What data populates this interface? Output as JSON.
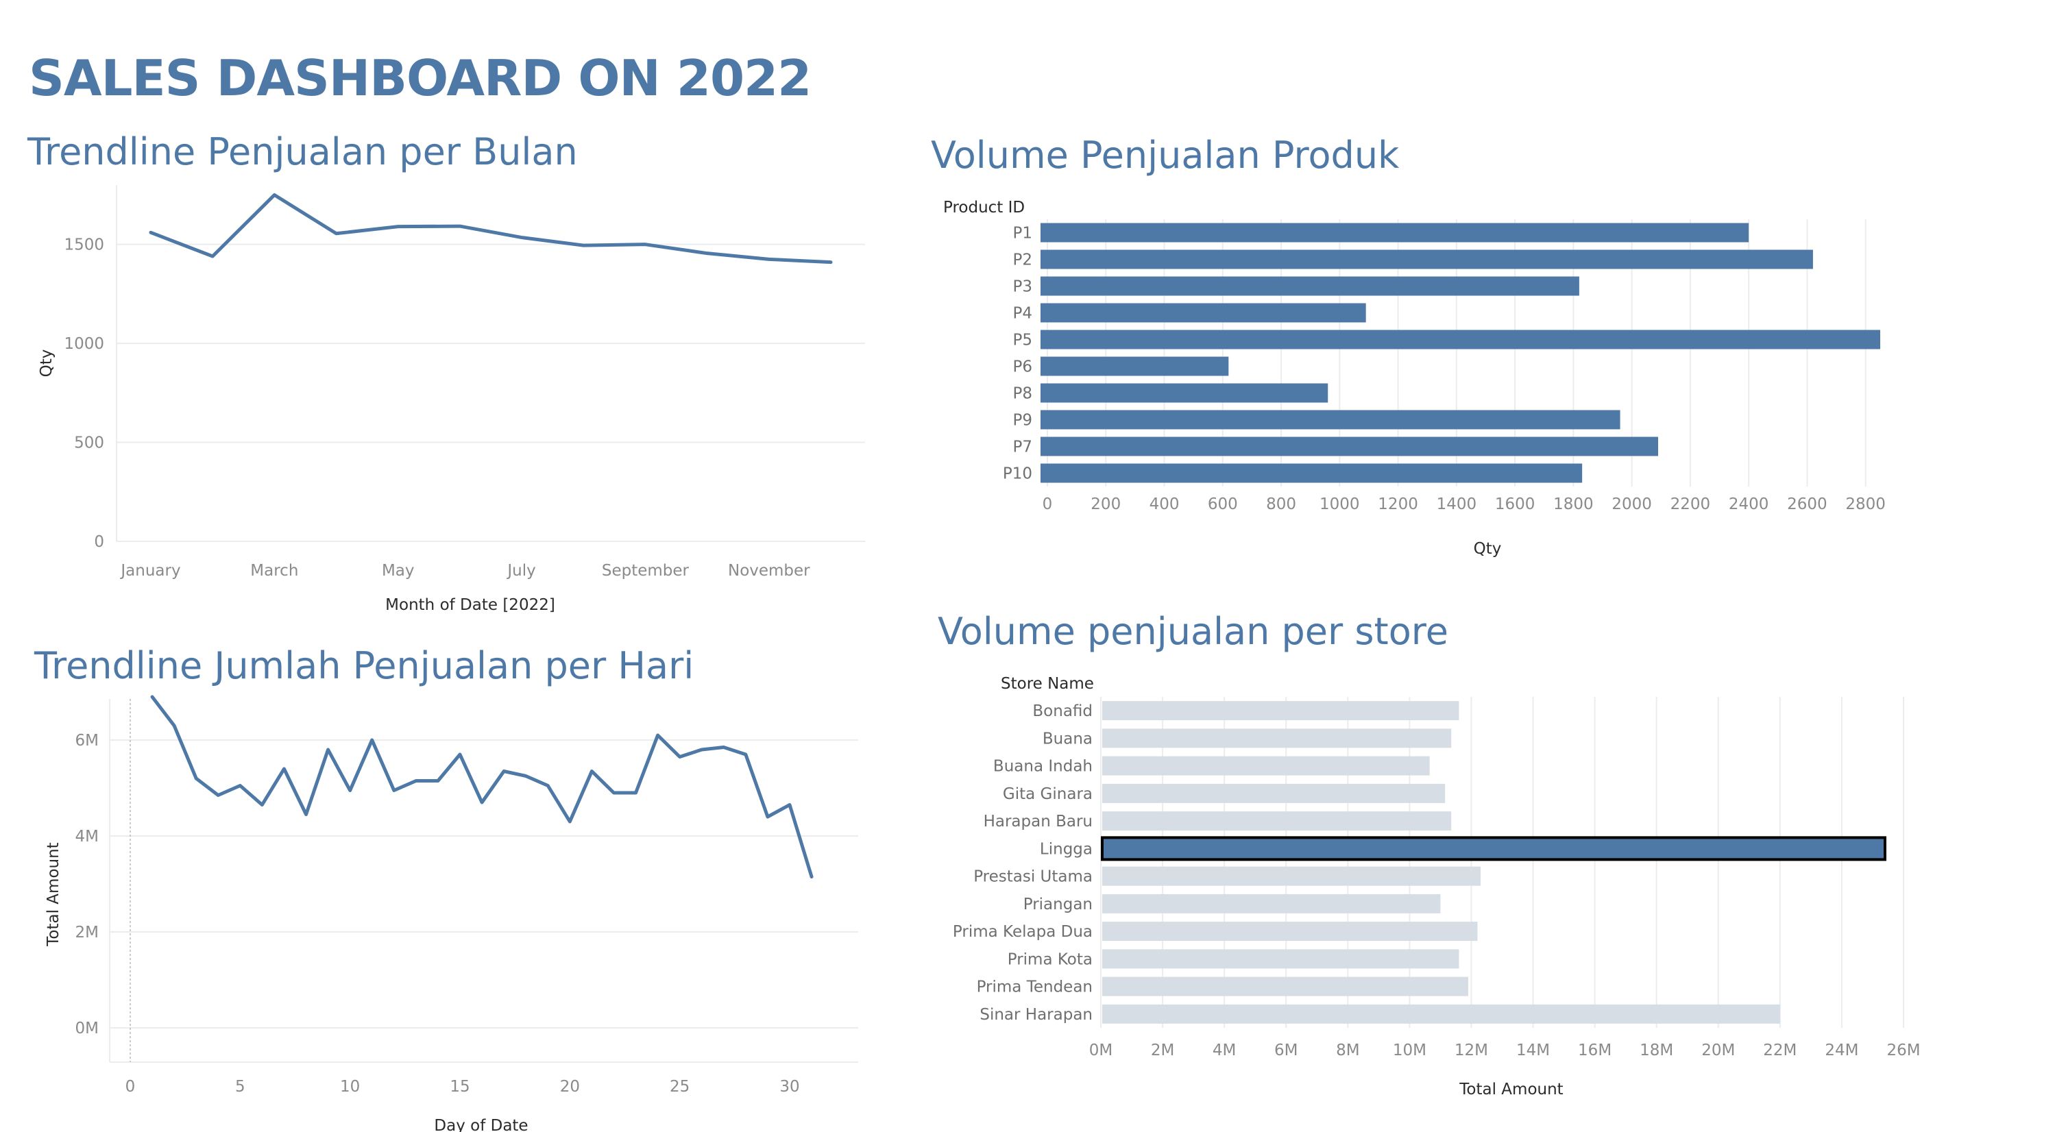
{
  "dashboard": {
    "title": "SALES DASHBOARD ON 2022"
  },
  "chart_data": [
    {
      "id": "monthly",
      "type": "line",
      "title": "Trendline Penjualan per Bulan",
      "xlabel": "Month of Date [2022]",
      "ylabel": "Qty",
      "x": [
        "January",
        "February",
        "March",
        "April",
        "May",
        "June",
        "July",
        "August",
        "September",
        "October",
        "November",
        "December"
      ],
      "x_tick_labels": [
        "January",
        "March",
        "May",
        "July",
        "September",
        "November"
      ],
      "values": [
        1560,
        1440,
        1750,
        1555,
        1590,
        1592,
        1535,
        1495,
        1500,
        1455,
        1425,
        1410
      ],
      "y_ticks": [
        0,
        500,
        1000,
        1500
      ],
      "ylim": [
        0,
        1800
      ],
      "grid": true,
      "color": "#4e79a7"
    },
    {
      "id": "products",
      "type": "bar",
      "orientation": "horizontal",
      "title": "Volume Penjualan Produk",
      "category_header": "Product ID",
      "xlabel": "Qty",
      "categories": [
        "P1",
        "P2",
        "P3",
        "P4",
        "P5",
        "P6",
        "P8",
        "P9",
        "P7",
        "P10"
      ],
      "values": [
        2400,
        2620,
        1820,
        1090,
        2850,
        620,
        960,
        1960,
        2090,
        1830
      ],
      "x_ticks": [
        0,
        200,
        400,
        600,
        800,
        1000,
        1200,
        1400,
        1600,
        1800,
        2000,
        2200,
        2400,
        2600,
        2800
      ],
      "xlim": [
        0,
        3000
      ],
      "grid": true,
      "color": "#4e79a7"
    },
    {
      "id": "daily",
      "type": "line",
      "title": "Trendline Jumlah Penjualan per Hari",
      "xlabel": "Day of Date",
      "ylabel": "Total Amount",
      "x": [
        1,
        2,
        3,
        4,
        5,
        6,
        7,
        8,
        9,
        10,
        11,
        12,
        13,
        14,
        15,
        16,
        17,
        18,
        19,
        20,
        21,
        22,
        23,
        24,
        25,
        26,
        27,
        28,
        29,
        30,
        31
      ],
      "values": [
        6.9,
        6.3,
        5.2,
        4.85,
        5.05,
        4.65,
        5.4,
        4.45,
        5.8,
        4.95,
        6.0,
        4.95,
        5.15,
        5.15,
        5.7,
        4.7,
        5.35,
        5.25,
        5.05,
        4.3,
        5.35,
        4.9,
        4.9,
        6.1,
        5.65,
        5.8,
        5.85,
        5.7,
        4.4,
        4.65,
        3.15
      ],
      "value_unit": "M",
      "x_ticks": [
        0,
        5,
        10,
        15,
        20,
        25,
        30
      ],
      "y_ticks": [
        0,
        2,
        4,
        6
      ],
      "y_tick_labels": [
        "0M",
        "2M",
        "4M",
        "6M"
      ],
      "xlim": [
        0,
        33
      ],
      "ylim": [
        0,
        7.2
      ],
      "grid": true,
      "color": "#4e79a7"
    },
    {
      "id": "stores",
      "type": "bar",
      "orientation": "horizontal",
      "title": "Volume penjualan per store",
      "category_header": "Store Name",
      "xlabel": "Total Amount",
      "categories": [
        "Bonafid",
        "Buana",
        "Buana Indah",
        "Gita Ginara",
        "Harapan Baru",
        "Lingga",
        "Prestasi Utama",
        "Priangan",
        "Prima Kelapa Dua",
        "Prima Kota",
        "Prima Tendean",
        "Sinar Harapan"
      ],
      "values": [
        11.6,
        11.35,
        10.65,
        11.15,
        11.35,
        25.4,
        12.3,
        11.0,
        12.2,
        11.6,
        11.9,
        22.0
      ],
      "value_unit": "M",
      "highlighted": "Lingga",
      "x_ticks": [
        0,
        2,
        4,
        6,
        8,
        10,
        12,
        14,
        16,
        18,
        20,
        22,
        24,
        26
      ],
      "x_tick_labels": [
        "0M",
        "2M",
        "4M",
        "6M",
        "8M",
        "10M",
        "12M",
        "14M",
        "16M",
        "18M",
        "20M",
        "22M",
        "24M",
        "26M"
      ],
      "xlim": [
        0,
        26.8
      ],
      "grid": true,
      "color": "#4e79a7",
      "dim_color": "#d6dde4",
      "highlight_border": "#000000"
    }
  ]
}
